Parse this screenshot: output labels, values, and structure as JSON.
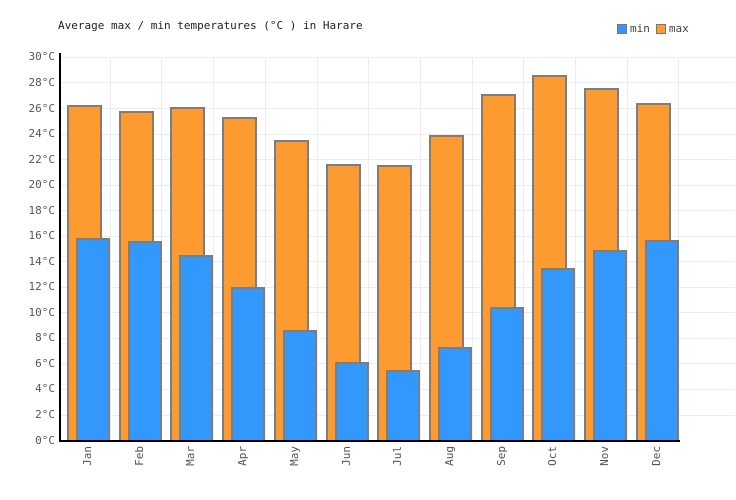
{
  "title": "Average max / min temperatures (°C ) in Harare",
  "legend": {
    "items": [
      {
        "label": "min",
        "color": "#3398fc"
      },
      {
        "label": "max",
        "color": "#fd9a30"
      }
    ]
  },
  "chart_data": {
    "type": "bar",
    "title": "Average max / min temperatures (°C ) in Harare",
    "categories": [
      "Jan",
      "Feb",
      "Mar",
      "Apr",
      "May",
      "Jun",
      "Jul",
      "Aug",
      "Sep",
      "Oct",
      "Nov",
      "Dec"
    ],
    "series": [
      {
        "name": "min",
        "color": "#3398fc",
        "values": [
          15.8,
          15.6,
          14.5,
          12.0,
          8.6,
          6.1,
          5.5,
          7.3,
          10.4,
          13.5,
          14.9,
          15.7
        ]
      },
      {
        "name": "max",
        "color": "#fd9a30",
        "values": [
          26.2,
          25.8,
          26.1,
          25.3,
          23.5,
          21.6,
          21.5,
          23.9,
          27.1,
          28.6,
          27.6,
          26.4
        ]
      }
    ],
    "xlabel": "",
    "ylabel": "",
    "ylim": [
      0,
      30
    ],
    "y_tick_step": 2,
    "y_tick_labels": [
      "0°C",
      "2°C",
      "4°C",
      "6°C",
      "8°C",
      "10°C",
      "12°C",
      "14°C",
      "16°C",
      "18°C",
      "20°C",
      "22°C",
      "24°C",
      "26°C",
      "28°C",
      "30°C"
    ],
    "grid": true,
    "legend_position": "top-right",
    "bar_border_color": "#7d7d7d",
    "axis_color": "#000000",
    "tick_label_color": "#555555",
    "background_color": "#ffffff"
  }
}
